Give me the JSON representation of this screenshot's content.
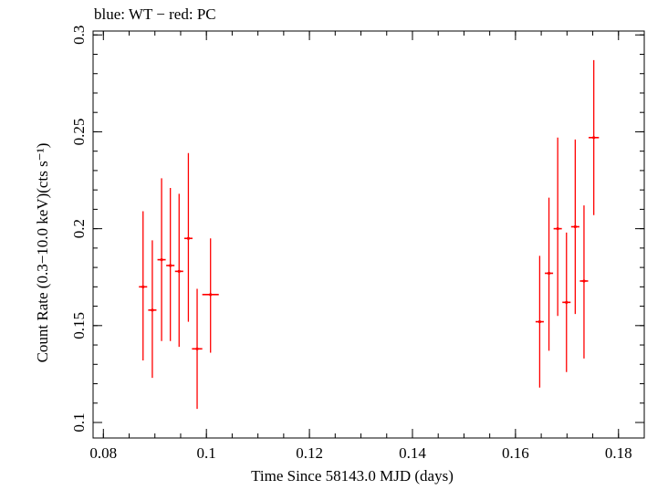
{
  "chart_data": {
    "type": "scatter",
    "title": "blue: WT − red: PC",
    "xlabel": "Time Since 58143.0 MJD (days)",
    "ylabel": "Count Rate (0.3−10.0 keV)(cts s⁻¹)",
    "xlim": [
      0.078,
      0.185
    ],
    "ylim": [
      0.092,
      0.302
    ],
    "xticks": [
      "0.08",
      "0.1",
      "0.12",
      "0.14",
      "0.16",
      "0.18"
    ],
    "yticks": [
      "0.1",
      "0.15",
      "0.2",
      "0.25",
      "0.3"
    ],
    "grid": false,
    "series": [
      {
        "name": "PC",
        "color": "#ff0000",
        "points": [
          {
            "x": 0.0877,
            "y": 0.17,
            "xerr": 0.0008,
            "ylo": 0.132,
            "yhi": 0.209
          },
          {
            "x": 0.0895,
            "y": 0.158,
            "xerr": 0.0008,
            "ylo": 0.123,
            "yhi": 0.194
          },
          {
            "x": 0.0913,
            "y": 0.184,
            "xerr": 0.0008,
            "ylo": 0.142,
            "yhi": 0.226
          },
          {
            "x": 0.093,
            "y": 0.181,
            "xerr": 0.0008,
            "ylo": 0.142,
            "yhi": 0.221
          },
          {
            "x": 0.0947,
            "y": 0.178,
            "xerr": 0.0008,
            "ylo": 0.139,
            "yhi": 0.218
          },
          {
            "x": 0.0965,
            "y": 0.195,
            "xerr": 0.0008,
            "ylo": 0.152,
            "yhi": 0.239
          },
          {
            "x": 0.0982,
            "y": 0.138,
            "xerr": 0.001,
            "ylo": 0.107,
            "yhi": 0.169
          },
          {
            "x": 0.1008,
            "y": 0.166,
            "xerr": 0.0016,
            "ylo": 0.136,
            "yhi": 0.195
          },
          {
            "x": 0.1647,
            "y": 0.152,
            "xerr": 0.0008,
            "ylo": 0.118,
            "yhi": 0.186
          },
          {
            "x": 0.1665,
            "y": 0.177,
            "xerr": 0.0008,
            "ylo": 0.137,
            "yhi": 0.216
          },
          {
            "x": 0.1682,
            "y": 0.2,
            "xerr": 0.0008,
            "ylo": 0.155,
            "yhi": 0.247
          },
          {
            "x": 0.1699,
            "y": 0.162,
            "xerr": 0.0008,
            "ylo": 0.126,
            "yhi": 0.198
          },
          {
            "x": 0.1716,
            "y": 0.201,
            "xerr": 0.0008,
            "ylo": 0.156,
            "yhi": 0.246
          },
          {
            "x": 0.1733,
            "y": 0.173,
            "xerr": 0.0008,
            "ylo": 0.133,
            "yhi": 0.212
          },
          {
            "x": 0.1752,
            "y": 0.247,
            "xerr": 0.001,
            "ylo": 0.207,
            "yhi": 0.287
          }
        ]
      }
    ]
  }
}
